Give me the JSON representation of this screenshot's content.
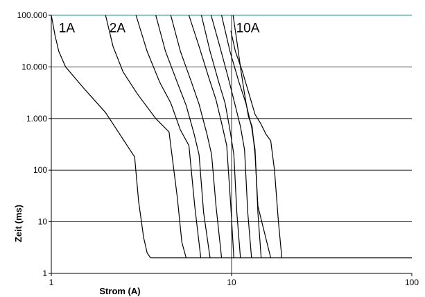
{
  "chart_data": {
    "type": "line",
    "xscale": "log",
    "yscale": "log",
    "xlim": [
      1,
      100
    ],
    "ylim": [
      1,
      100000
    ],
    "xlabel": "Strom (A)",
    "ylabel": "Zeit (ms)",
    "x_ticks": [
      {
        "v": 1,
        "label": "1"
      },
      {
        "v": 10,
        "label": "10"
      },
      {
        "v": 100,
        "label": "100"
      }
    ],
    "y_ticks": [
      {
        "v": 1,
        "label": "1"
      },
      {
        "v": 10,
        "label": "10"
      },
      {
        "v": 100,
        "label": "100"
      },
      {
        "v": 1000,
        "label": "1.000"
      },
      {
        "v": 10000,
        "label": "10.000"
      },
      {
        "v": 100000,
        "label": "100.000"
      }
    ],
    "grid": true,
    "annotations": [
      {
        "text": "1A",
        "x": 1.1,
        "y": 47000
      },
      {
        "text": "2A",
        "x": 2.1,
        "y": 47000
      },
      {
        "text": "10A",
        "x": 10.6,
        "y": 47000
      }
    ],
    "top_line_color": "#5fb8b8",
    "series": [
      {
        "x": [
          1.0,
          1.05,
          1.1,
          1.2,
          1.5,
          2.0,
          2.9,
          3.05,
          3.25,
          3.4,
          3.55,
          100
        ],
        "y": [
          100000,
          40000,
          20000,
          10000,
          4000,
          1300,
          180,
          25,
          5,
          2.5,
          2,
          2
        ]
      },
      {
        "x": [
          2.0,
          2.2,
          2.5,
          3.0,
          3.8,
          4.5,
          5.0,
          5.3,
          5.6
        ],
        "y": [
          100000,
          25000,
          8000,
          3000,
          1000,
          550,
          30,
          4,
          2
        ]
      },
      {
        "x": [
          2.95,
          3.4,
          4.0,
          4.6,
          5.2,
          5.8,
          6.25,
          6.75
        ],
        "y": [
          100000,
          20000,
          5000,
          2000,
          600,
          300,
          20,
          2
        ]
      },
      {
        "x": [
          3.8,
          4.3,
          5.0,
          5.6,
          6.2,
          6.6,
          7.0,
          7.6
        ],
        "y": [
          100000,
          20000,
          5000,
          1800,
          500,
          200,
          15,
          2
        ]
      },
      {
        "x": [
          4.6,
          5.2,
          6.0,
          6.6,
          7.3,
          7.75,
          8.2,
          8.8
        ],
        "y": [
          100000,
          20000,
          5000,
          1900,
          500,
          200,
          20,
          2
        ]
      },
      {
        "x": [
          5.8,
          6.6,
          7.5,
          8.2,
          8.9,
          9.4,
          9.9,
          10.3
        ],
        "y": [
          100000,
          25000,
          6000,
          2300,
          700,
          300,
          20,
          2
        ]
      },
      {
        "x": [
          6.8,
          7.6,
          8.5,
          9.2,
          9.8,
          10.3,
          10.7,
          11.2
        ],
        "y": [
          100000,
          20000,
          5000,
          2000,
          600,
          200,
          15,
          2
        ]
      },
      {
        "x": [
          7.7,
          8.6,
          9.6,
          10.4,
          11.2,
          11.8,
          12.3,
          12.9
        ],
        "y": [
          100000,
          25000,
          6000,
          2000,
          700,
          250,
          15,
          2
        ]
      },
      {
        "x": [
          8.8,
          9.8,
          11.0,
          12.0,
          12.9,
          13.5,
          14.0,
          14.6
        ],
        "y": [
          100000,
          20000,
          5000,
          2000,
          700,
          250,
          15,
          2
        ]
      },
      {
        "x": [
          9.9,
          10.5,
          11.5,
          12.5,
          13.5,
          14.5,
          15.5,
          16.5,
          17.3,
          18.2,
          19.0
        ],
        "y": [
          50000,
          20000,
          8000,
          3000,
          1200,
          800,
          500,
          370,
          100,
          10,
          2
        ]
      },
      {
        "x": [
          10.2,
          10.8,
          11.3,
          11.8,
          12.4,
          13.0,
          13.5,
          14.0,
          16.5
        ],
        "y": [
          100000,
          25000,
          8000,
          3000,
          1100,
          700,
          200,
          20,
          2
        ]
      }
    ]
  }
}
